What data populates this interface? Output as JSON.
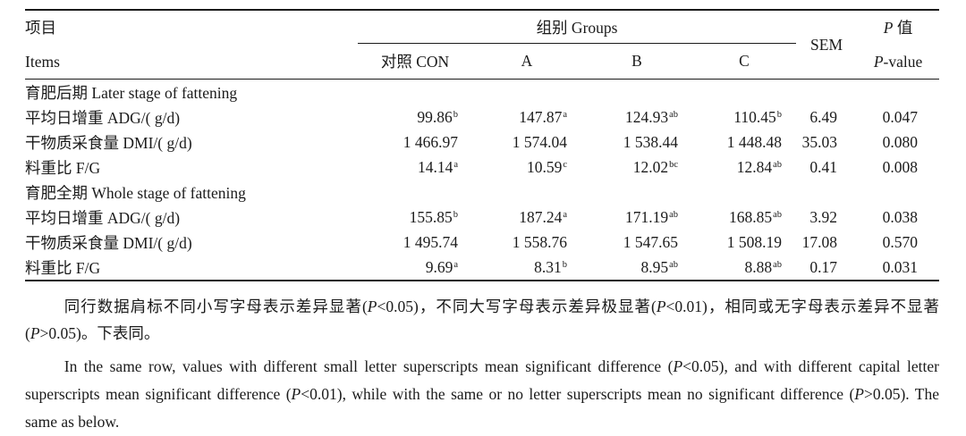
{
  "table": {
    "header": {
      "items_zh": "项目",
      "items_en": "Items",
      "groups_label": "组别 Groups",
      "group_cols": [
        "对照 CON",
        "A",
        "B",
        "C"
      ],
      "sem_label": "SEM",
      "p_zh": "P 值",
      "p_en": "P-value"
    },
    "rows": [
      {
        "type": "section",
        "label": "育肥后期 Later stage of fattening"
      },
      {
        "type": "data",
        "label": "平均日增重 ADG/( g/d)",
        "values": [
          {
            "v": "99.86",
            "sup": "b"
          },
          {
            "v": "147.87",
            "sup": "a"
          },
          {
            "v": "124.93",
            "sup": "ab"
          },
          {
            "v": "110.45",
            "sup": "b"
          }
        ],
        "sem": "6.49",
        "p": "0.047"
      },
      {
        "type": "data",
        "label": "干物质采食量 DMI/( g/d)",
        "values": [
          {
            "v": "1 466.97",
            "sup": ""
          },
          {
            "v": "1 574.04",
            "sup": ""
          },
          {
            "v": "1 538.44",
            "sup": ""
          },
          {
            "v": "1 448.48",
            "sup": ""
          }
        ],
        "sem": "35.03",
        "p": "0.080"
      },
      {
        "type": "data",
        "label": "料重比 F/G",
        "values": [
          {
            "v": "14.14",
            "sup": "a"
          },
          {
            "v": "10.59",
            "sup": "c"
          },
          {
            "v": "12.02",
            "sup": "bc"
          },
          {
            "v": "12.84",
            "sup": "ab"
          }
        ],
        "sem": "0.41",
        "p": "0.008"
      },
      {
        "type": "section",
        "label": "育肥全期 Whole stage of fattening"
      },
      {
        "type": "data",
        "label": "平均日增重 ADG/( g/d)",
        "values": [
          {
            "v": "155.85",
            "sup": "b"
          },
          {
            "v": "187.24",
            "sup": "a"
          },
          {
            "v": "171.19",
            "sup": "ab"
          },
          {
            "v": "168.85",
            "sup": "ab"
          }
        ],
        "sem": "3.92",
        "p": "0.038"
      },
      {
        "type": "data",
        "label": "干物质采食量 DMI/( g/d)",
        "values": [
          {
            "v": "1 495.74",
            "sup": ""
          },
          {
            "v": "1 558.76",
            "sup": ""
          },
          {
            "v": "1 547.65",
            "sup": ""
          },
          {
            "v": "1 508.19",
            "sup": ""
          }
        ],
        "sem": "17.08",
        "p": "0.570"
      },
      {
        "type": "data",
        "label": "料重比 F/G",
        "values": [
          {
            "v": "9.69",
            "sup": "a"
          },
          {
            "v": "8.31",
            "sup": "b"
          },
          {
            "v": "8.95",
            "sup": "ab"
          },
          {
            "v": "8.88",
            "sup": "ab"
          }
        ],
        "sem": "0.17",
        "p": "0.031"
      }
    ]
  },
  "notes": {
    "zh": "同行数据肩标不同小写字母表示差异显著(P<0.05)，不同大写字母表示差异极显著(P<0.01)，相同或无字母表示差异不显著(P>0.05)。下表同。",
    "en": "In the same row, values with different small letter superscripts mean significant difference (P<0.05), and with different capital letter superscripts mean significant difference (P<0.01), while with the same or no letter superscripts mean no significant difference (P>0.05). The same as below."
  },
  "colors": {
    "text": "#1b1b1b",
    "rule": "#1b1b1b",
    "background": "#ffffff"
  }
}
